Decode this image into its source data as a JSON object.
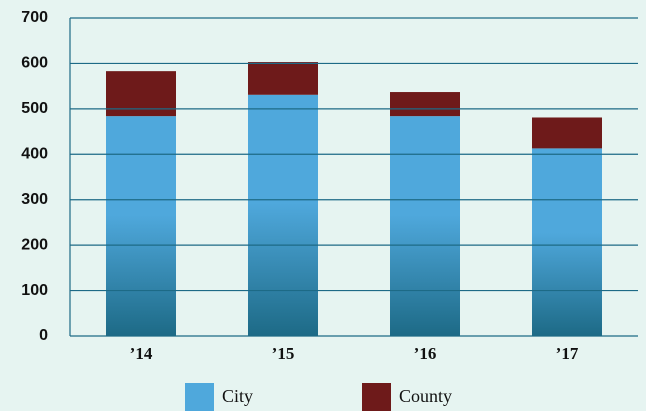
{
  "chart_data": {
    "type": "stacked_bar",
    "categories": [
      "’14",
      "’15",
      "’16",
      "’17"
    ],
    "series": [
      {
        "name": "City",
        "color": "#4fa8dc",
        "values": [
          484,
          531,
          484,
          413
        ]
      },
      {
        "name": "County",
        "color": "#6e1a1a",
        "values": [
          99,
          72,
          53,
          68
        ]
      }
    ],
    "ylim": [
      0,
      700
    ],
    "yticks": [
      0,
      100,
      200,
      300,
      400,
      500,
      600,
      700
    ],
    "grid": true
  }
}
